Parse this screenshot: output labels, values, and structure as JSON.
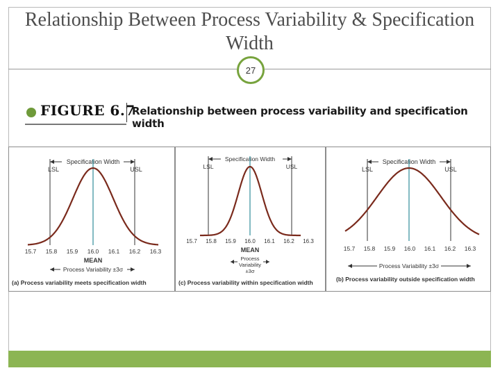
{
  "slide": {
    "title": "Relationship Between Process Variability & Specification Width",
    "page_number": "27"
  },
  "figure": {
    "label": "FIGURE 6.7",
    "caption": "Relationship between process variability and specification width"
  },
  "panels": [
    {
      "id": "a",
      "caption": "(a) Process variability meets specification width",
      "spec_label": "Specification Width",
      "lsl": "LSL",
      "usl": "USL",
      "ticks": [
        "15.7",
        "15.8",
        "15.9",
        "16.0",
        "16.1",
        "16.2",
        "16.3"
      ],
      "mean_label": "MEAN",
      "variability_label": "Process Variability ±3σ"
    },
    {
      "id": "c",
      "caption": "(c) Process variability within specification width",
      "spec_label": "Specification Width",
      "lsl": "LSL",
      "usl": "USL",
      "ticks": [
        "15.7",
        "15.8",
        "15.9",
        "16.0",
        "16.1",
        "16.2",
        "16.3"
      ],
      "mean_label": "MEAN",
      "variability_lines": [
        "Process",
        "Variability",
        "±3σ"
      ]
    },
    {
      "id": "b",
      "caption": "(b) Process variability outside specification width",
      "spec_label": "Specification Width",
      "lsl": "LSL",
      "usl": "USL",
      "ticks": [
        "15.7",
        "15.8",
        "15.9",
        "16.0",
        "16.1",
        "16.2",
        "16.3"
      ],
      "variability_label": "Process Variability ±3σ"
    }
  ],
  "colors": {
    "curve": "#7a2a1c",
    "mean_line": "#2e8b9a",
    "accent_green": "#8cb553"
  }
}
